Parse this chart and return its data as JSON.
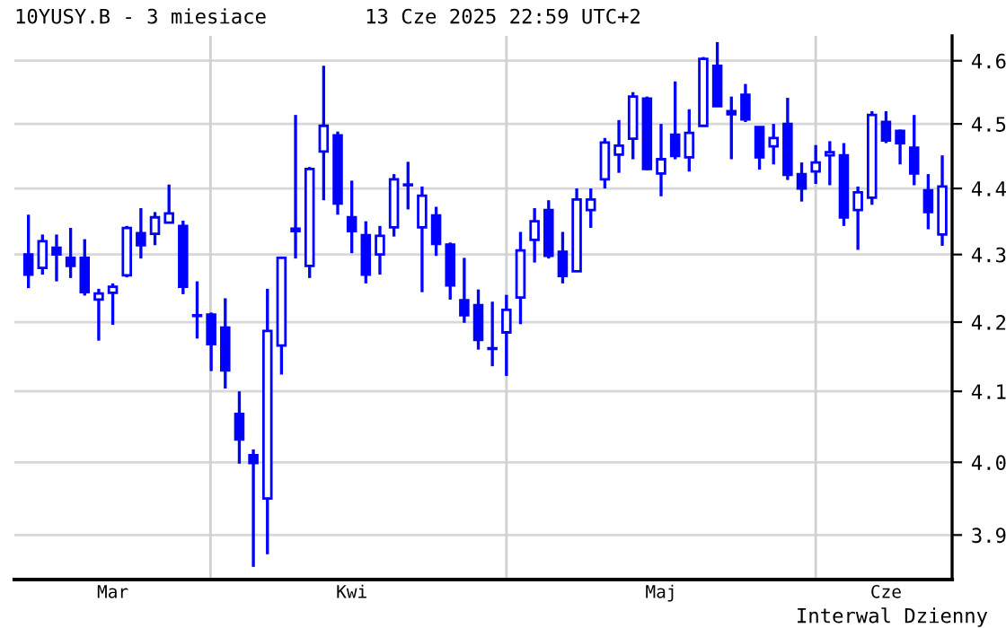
{
  "chart_data": {
    "type": "candlestick",
    "title": "10YUSY.B - 3 miesiace",
    "subtitle": "13 Cze 2025 22:59 UTC+2",
    "annotations": [
      "Interwal Dzienny"
    ],
    "categories": [
      null,
      null,
      null,
      null,
      null,
      null,
      "Mar",
      null,
      null,
      null,
      null,
      null,
      null,
      null,
      null,
      null,
      null,
      null,
      null,
      null,
      null,
      null,
      null,
      "Kwi",
      null,
      null,
      null,
      null,
      null,
      null,
      null,
      null,
      null,
      null,
      null,
      null,
      null,
      null,
      null,
      null,
      null,
      null,
      null,
      null,
      null,
      "Maj",
      null,
      null,
      null,
      null,
      null,
      null,
      null,
      null,
      null,
      null,
      null,
      null,
      null,
      null,
      null,
      "Cze",
      null,
      null,
      null,
      null
    ],
    "ohlc": [
      [
        4.3,
        4.36,
        4.25,
        4.27
      ],
      [
        4.28,
        4.33,
        4.27,
        4.32
      ],
      [
        4.31,
        4.33,
        4.26,
        4.3
      ],
      [
        4.295,
        4.34,
        4.265,
        4.283
      ],
      [
        4.295,
        4.323,
        4.239,
        4.244
      ],
      [
        4.233,
        4.249,
        4.173,
        4.242
      ],
      [
        4.243,
        4.257,
        4.196,
        4.252
      ],
      [
        4.269,
        4.343,
        4.266,
        4.34
      ],
      [
        4.332,
        4.37,
        4.294,
        4.314
      ],
      [
        4.331,
        4.364,
        4.314,
        4.356
      ],
      [
        4.348,
        4.406,
        4.348,
        4.362
      ],
      [
        4.343,
        4.351,
        4.241,
        4.252
      ],
      [
        4.21,
        4.26,
        4.176,
        4.209
      ],
      [
        4.211,
        4.214,
        4.129,
        4.168
      ],
      [
        4.192,
        4.235,
        4.104,
        4.13
      ],
      [
        4.068,
        4.1,
        3.998,
        4.032
      ],
      [
        4.01,
        4.018,
        3.857,
        3.999
      ],
      [
        3.95,
        4.249,
        3.874,
        4.187
      ],
      [
        4.166,
        4.297,
        4.124,
        4.295
      ],
      [
        4.339,
        4.514,
        4.294,
        4.335
      ],
      [
        4.283,
        4.433,
        4.265,
        4.43
      ],
      [
        4.457,
        4.592,
        4.382,
        4.497
      ],
      [
        4.482,
        4.488,
        4.36,
        4.377
      ],
      [
        4.356,
        4.412,
        4.302,
        4.335
      ],
      [
        4.329,
        4.35,
        4.257,
        4.27
      ],
      [
        4.3,
        4.343,
        4.27,
        4.328
      ],
      [
        4.341,
        4.422,
        4.327,
        4.414
      ],
      [
        4.405,
        4.441,
        4.368,
        4.406
      ],
      [
        4.341,
        4.403,
        4.244,
        4.389
      ],
      [
        4.359,
        4.372,
        4.298,
        4.316
      ],
      [
        4.315,
        4.318,
        4.233,
        4.254
      ],
      [
        4.232,
        4.295,
        4.199,
        4.21
      ],
      [
        4.225,
        4.248,
        4.16,
        4.174
      ],
      [
        4.162,
        4.23,
        4.136,
        4.161
      ],
      [
        4.185,
        4.24,
        4.122,
        4.218
      ],
      [
        4.236,
        4.334,
        4.197,
        4.306
      ],
      [
        4.322,
        4.37,
        4.288,
        4.35
      ],
      [
        4.367,
        4.382,
        4.294,
        4.298
      ],
      [
        4.304,
        4.334,
        4.257,
        4.268
      ],
      [
        4.275,
        4.4,
        4.275,
        4.383
      ],
      [
        4.367,
        4.4,
        4.34,
        4.383
      ],
      [
        4.414,
        4.478,
        4.4,
        4.471
      ],
      [
        4.452,
        4.506,
        4.424,
        4.466
      ],
      [
        4.477,
        4.55,
        4.445,
        4.543
      ],
      [
        4.54,
        4.543,
        4.428,
        4.43
      ],
      [
        4.423,
        4.5,
        4.388,
        4.445
      ],
      [
        4.483,
        4.567,
        4.445,
        4.45
      ],
      [
        4.448,
        4.523,
        4.426,
        4.486
      ],
      [
        4.497,
        4.606,
        4.497,
        4.603
      ],
      [
        4.592,
        4.63,
        4.528,
        4.528
      ],
      [
        4.52,
        4.543,
        4.445,
        4.515
      ],
      [
        4.546,
        4.563,
        4.503,
        4.507
      ],
      [
        4.495,
        4.495,
        4.429,
        4.448
      ],
      [
        4.465,
        4.5,
        4.437,
        4.478
      ],
      [
        4.5,
        4.541,
        4.413,
        4.421
      ],
      [
        4.422,
        4.44,
        4.38,
        4.4
      ],
      [
        4.426,
        4.467,
        4.407,
        4.44
      ],
      [
        4.451,
        4.473,
        4.405,
        4.456
      ],
      [
        4.451,
        4.47,
        4.343,
        4.356
      ],
      [
        4.367,
        4.403,
        4.307,
        4.394
      ],
      [
        4.386,
        4.52,
        4.375,
        4.514
      ],
      [
        4.503,
        4.52,
        4.47,
        4.474
      ],
      [
        4.489,
        4.491,
        4.437,
        4.47
      ],
      [
        4.463,
        4.514,
        4.405,
        4.423
      ],
      [
        4.397,
        4.422,
        4.338,
        4.364
      ],
      [
        4.33,
        4.451,
        4.313,
        4.403
      ]
    ],
    "color": "#0000ff",
    "log": true,
    "ylim": [
      3.84,
      4.64
    ],
    "yticks": [
      3.9,
      {
        "value": 4,
        "label": "4.0"
      },
      4.1,
      4.2,
      4.3,
      4.4,
      4.5,
      4.6
    ],
    "grid": "y"
  }
}
